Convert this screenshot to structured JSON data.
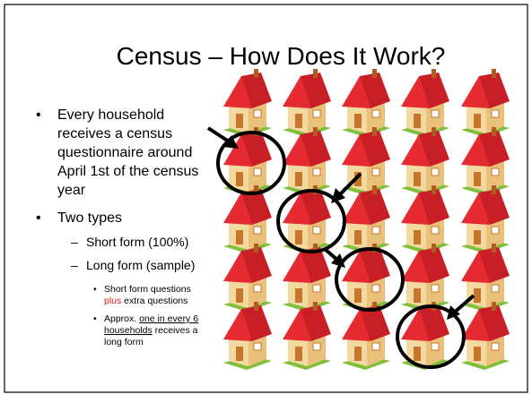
{
  "slide": {
    "title": "Census – How Does It Work?",
    "bullet1": {
      "lines": [
        "Every household",
        "receives a census",
        "questionnaire around",
        "April 1st of the census",
        "year"
      ]
    },
    "bullet2": {
      "text": "Two types",
      "sub1": "Short form (100%)",
      "sub2": "Long form (sample)",
      "item1": {
        "line1": "Short form questions",
        "red": "plus",
        "rest": " extra questions"
      },
      "item2": {
        "pre": "Approx. ",
        "underlined1": "one in every 6",
        "underlined2": "households",
        "rest2": " receives a",
        "line3": "long form"
      }
    }
  }
}
